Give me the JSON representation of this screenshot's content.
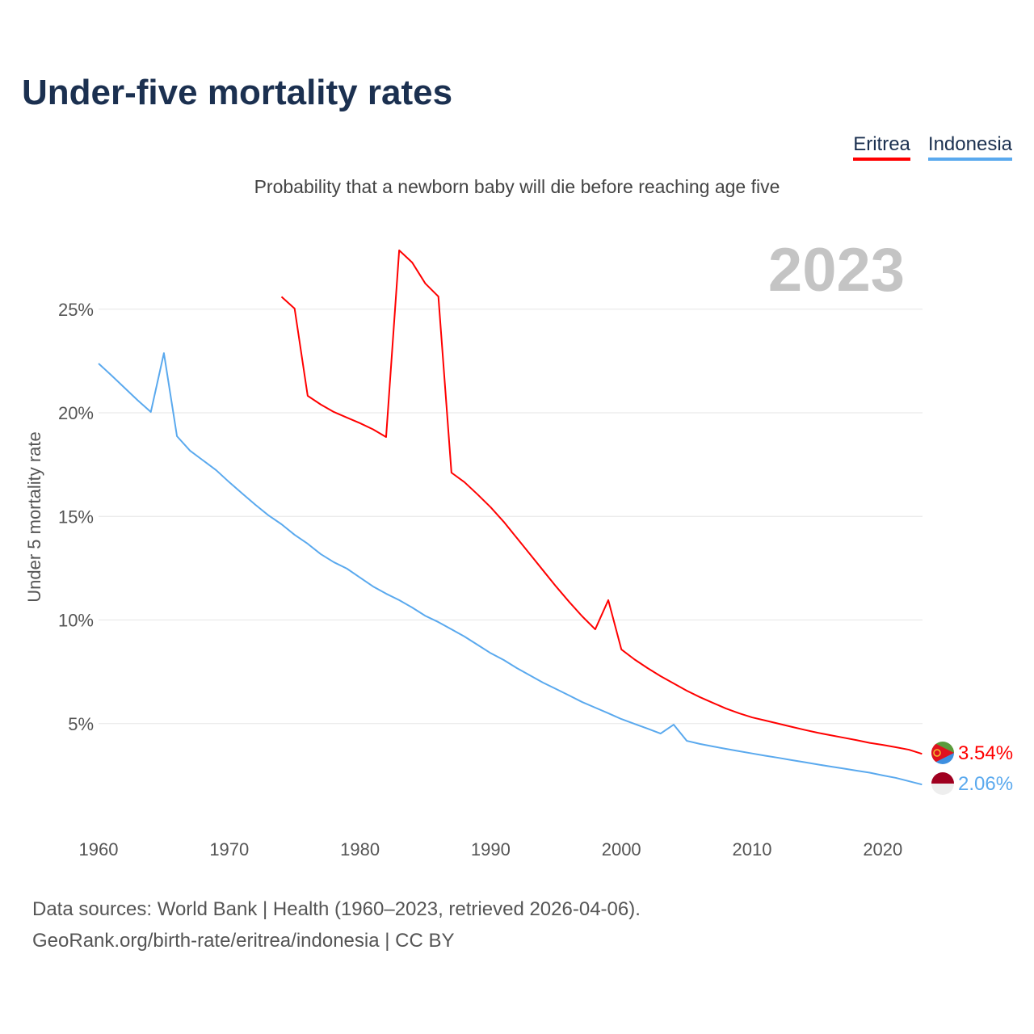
{
  "title": "Under-five mortality rates",
  "subtitle": "Probability that a newborn baby will die before reaching age five",
  "year_label": "2023",
  "footer": {
    "line1": "Data sources: World Bank | Health (1960–2023, retrieved 2026-04-06).",
    "line2": "GeoRank.org/birth-rate/eritrea/indonesia | CC BY"
  },
  "chart_data": {
    "type": "line",
    "title": "Under-five mortality rates",
    "ylabel": "Under 5 mortality rate",
    "xlabel": "",
    "xlim": [
      1960,
      2023
    ],
    "ylim": [
      0,
      28
    ],
    "xticks": [
      "1960",
      "1970",
      "1980",
      "1990",
      "2000",
      "2010",
      "2020"
    ],
    "yticks": [
      "5%",
      "10%",
      "15%",
      "20%",
      "25%"
    ],
    "grid": true,
    "legend_placement": "top-right",
    "series": [
      {
        "name": "Eritrea",
        "color": "#ff0000",
        "end_label": "3.54%",
        "start_year": 1974,
        "values": [
          25.6,
          25.03,
          20.82,
          20.4,
          20.04,
          19.77,
          19.5,
          19.2,
          18.83,
          27.84,
          27.25,
          26.24,
          25.61,
          17.11,
          16.65,
          16.06,
          15.44,
          14.74,
          13.96,
          13.18,
          12.4,
          11.62,
          10.88,
          10.18,
          9.55,
          10.96,
          8.58,
          8.1,
          7.68,
          7.29,
          6.94,
          6.59,
          6.28,
          6.0,
          5.73,
          5.5,
          5.3,
          5.15,
          5.0,
          4.85,
          4.7,
          4.56,
          4.44,
          4.32,
          4.2,
          4.07,
          3.97,
          3.86,
          3.74,
          3.54
        ]
      },
      {
        "name": "Indonesia",
        "color": "#5aa9ee",
        "end_label": "2.06%",
        "start_year": 1960,
        "values": [
          22.38,
          21.8,
          21.2,
          20.6,
          20.04,
          22.88,
          18.87,
          18.17,
          17.7,
          17.23,
          16.65,
          16.1,
          15.56,
          15.05,
          14.62,
          14.11,
          13.68,
          13.18,
          12.79,
          12.48,
          12.05,
          11.62,
          11.27,
          10.96,
          10.6,
          10.2,
          9.9,
          9.55,
          9.2,
          8.8,
          8.4,
          8.07,
          7.68,
          7.33,
          6.98,
          6.67,
          6.36,
          6.04,
          5.77,
          5.5,
          5.22,
          4.99,
          4.76,
          4.52,
          4.95,
          4.17,
          4.02,
          3.9,
          3.78,
          3.67,
          3.56,
          3.45,
          3.35,
          3.24,
          3.14,
          3.03,
          2.93,
          2.83,
          2.73,
          2.63,
          2.5,
          2.38,
          2.22,
          2.06
        ]
      }
    ]
  }
}
